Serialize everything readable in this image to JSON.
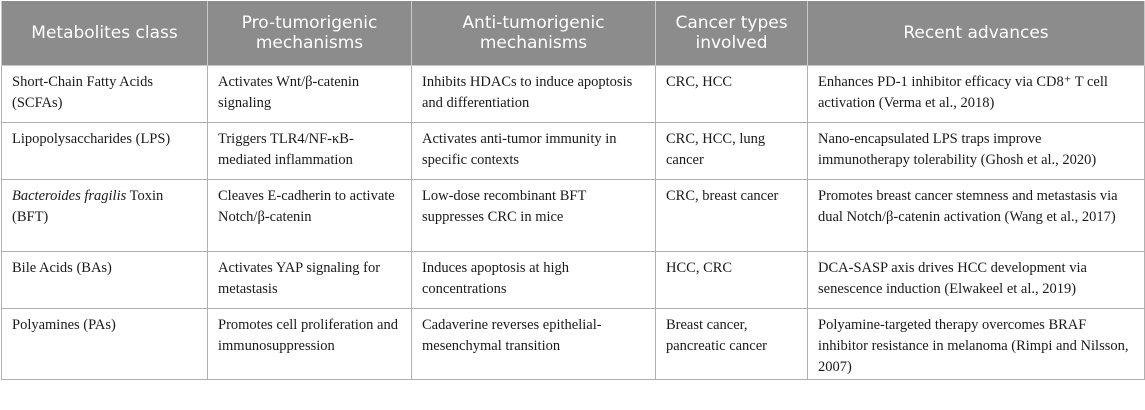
{
  "headers": [
    "Metabolites class",
    "Pro-tumorigenic mechanisms",
    "Anti-tumorigenic mechanisms",
    "Cancer types involved",
    "Recent advances"
  ],
  "rows": [
    {
      "metabolite": "Short-Chain Fatty Acids (SCFAs)",
      "pro": "Activates Wnt/β-catenin signaling",
      "anti": "Inhibits HDACs to induce apoptosis and differentiation",
      "cancers": "CRC, HCC",
      "advances": "Enhances PD-1 inhibitor efficacy via CD8⁺ T cell activation (Verma et al., 2018)"
    },
    {
      "metabolite": "Lipopolysaccharides (LPS)",
      "pro": "Triggers TLR4/NF-κB-mediated inflammation",
      "anti": "Activates anti-tumor immunity in specific contexts",
      "cancers": "CRC, HCC, lung cancer",
      "advances": "Nano-encapsulated LPS traps improve immunotherapy tolerability (Ghosh et al., 2020)"
    },
    {
      "metabolite_italic": "Bacteroides fragilis",
      "metabolite_rest": " Toxin (BFT)",
      "pro": "Cleaves E-cadherin to activate Notch/β-catenin",
      "anti": "Low-dose recombinant BFT suppresses CRC in mice",
      "cancers": "CRC, breast cancer",
      "advances": "Promotes breast cancer stemness and metastasis via dual Notch/β-catenin activation (Wang et al., 2017)"
    },
    {
      "metabolite": "Bile Acids (BAs)",
      "pro": "Activates YAP signaling for metastasis",
      "anti": "Induces apoptosis at high concentrations",
      "cancers": "HCC, CRC",
      "advances": "DCA-SASP axis drives HCC development via senescence induction (Elwakeel et al., 2019)"
    },
    {
      "metabolite": "Polyamines (PAs)",
      "pro": "Promotes cell proliferation and immunosuppression",
      "anti": "Cadaverine reverses epithelial-mesenchymal transition",
      "cancers": "Breast cancer, pancreatic cancer",
      "advances": "Polyamine-targeted therapy overcomes BRAF inhibitor resistance in melanoma (Rimpi and Nilsson, 2007)"
    }
  ],
  "colors": {
    "header_bg": "#8c8c8c",
    "header_text": "#ffffff",
    "border": "#b0b0b0",
    "body_text": "#1a1a1a"
  }
}
